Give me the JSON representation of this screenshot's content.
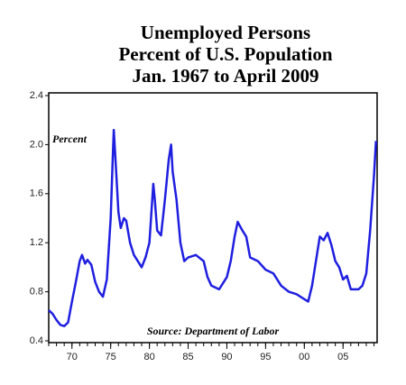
{
  "chart_data": {
    "type": "line",
    "title": [
      "Unemployed Persons",
      "Percent of U.S. Population",
      "Jan. 1967 to April 2009"
    ],
    "y_label": "Percent",
    "source": "Source: Department of Labor",
    "x": [
      1967,
      1967.5,
      1968,
      1968.5,
      1969,
      1969.5,
      1970,
      1970.5,
      1971,
      1971.3,
      1971.7,
      1972,
      1972.5,
      1973,
      1973.5,
      1974,
      1974.5,
      1975,
      1975.3,
      1975.4,
      1975.6,
      1976,
      1976.3,
      1976.7,
      1977,
      1977.5,
      1978,
      1978.5,
      1979,
      1979.5,
      1980,
      1980.5,
      1980.7,
      1981,
      1981.5,
      1982,
      1982.5,
      1982.8,
      1983,
      1983.5,
      1984,
      1984.5,
      1985,
      1986,
      1987,
      1987.5,
      1988,
      1989,
      1990,
      1990.5,
      1991,
      1991.4,
      1992,
      1992.5,
      1993,
      1994,
      1995,
      1996,
      1997,
      1998,
      1999,
      2000,
      2000.5,
      2001,
      2001.5,
      2002,
      2002.5,
      2003,
      2003.5,
      2004,
      2004.5,
      2005,
      2005.5,
      2006,
      2007,
      2007.5,
      2008,
      2008.5,
      2009,
      2009.25
    ],
    "series": [
      {
        "name": "Unemployed persons",
        "color": "#1f1fe0",
        "values": [
          0.65,
          0.62,
          0.57,
          0.53,
          0.52,
          0.55,
          0.72,
          0.88,
          1.05,
          1.1,
          1.03,
          1.06,
          1.02,
          0.88,
          0.8,
          0.76,
          0.9,
          1.4,
          1.95,
          2.12,
          1.9,
          1.45,
          1.32,
          1.4,
          1.38,
          1.2,
          1.1,
          1.05,
          1.0,
          1.08,
          1.2,
          1.68,
          1.55,
          1.3,
          1.26,
          1.55,
          1.88,
          2.0,
          1.78,
          1.55,
          1.2,
          1.05,
          1.08,
          1.1,
          1.05,
          0.92,
          0.85,
          0.82,
          0.92,
          1.05,
          1.25,
          1.37,
          1.3,
          1.25,
          1.08,
          1.05,
          0.98,
          0.95,
          0.85,
          0.8,
          0.78,
          0.74,
          0.72,
          0.85,
          1.05,
          1.25,
          1.22,
          1.28,
          1.18,
          1.05,
          1.0,
          0.9,
          0.93,
          0.82,
          0.82,
          0.85,
          0.95,
          1.3,
          1.75,
          2.03
        ]
      }
    ],
    "xlim": [
      1967,
      2009.4
    ],
    "xticks": [
      {
        "value": 1970,
        "label": "70"
      },
      {
        "value": 1975,
        "label": "75"
      },
      {
        "value": 1980,
        "label": "80"
      },
      {
        "value": 1985,
        "label": "85"
      },
      {
        "value": 1990,
        "label": "90"
      },
      {
        "value": 1995,
        "label": "95"
      },
      {
        "value": 2000,
        "label": "00"
      },
      {
        "value": 2005,
        "label": "05"
      }
    ],
    "xminor": [
      1967,
      1968,
      1969,
      1970,
      1971,
      1972,
      1973,
      1974,
      1975,
      1976,
      1977,
      1978,
      1979,
      1980,
      1981,
      1982,
      1983,
      1984,
      1985,
      1986,
      1987,
      1988,
      1989,
      1990,
      1991,
      1992,
      1993,
      1994,
      1995,
      1996,
      1997,
      1998,
      1999,
      2000,
      2001,
      2002,
      2003,
      2004,
      2005,
      2006,
      2007,
      2008,
      2009
    ],
    "ylim": [
      0.4,
      2.4
    ],
    "yticks": [
      0.4,
      0.8,
      1.2,
      1.6,
      {
        "value": 2,
        "label": "2.0"
      },
      2.4
    ]
  }
}
